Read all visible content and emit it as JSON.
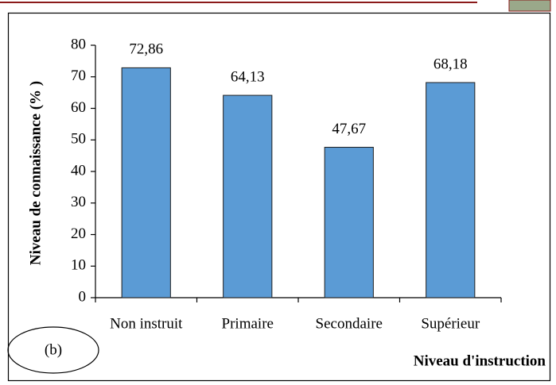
{
  "chart_data": {
    "type": "bar",
    "categories": [
      "Non instruit",
      "Primaire",
      "Secondaire",
      "Supérieur"
    ],
    "values": [
      72.86,
      64.13,
      47.67,
      68.18
    ],
    "value_labels": [
      "72,86",
      "64,13",
      "47,67",
      "68,18"
    ],
    "color": "#5b9bd5",
    "ylim": [
      0,
      80
    ],
    "yticks": [
      0,
      10,
      20,
      30,
      40,
      50,
      60,
      70,
      80
    ],
    "y_label": "Niveau de connaissance (% )",
    "x_label": "Niveau d'instruction",
    "annotation": "(b)"
  }
}
